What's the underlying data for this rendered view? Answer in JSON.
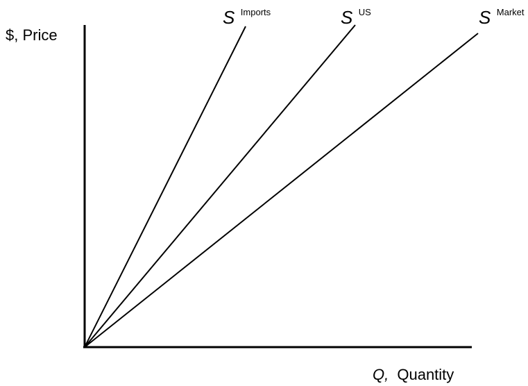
{
  "axes": {
    "y_label": "$, Price",
    "x_label_var": "Q,",
    "x_label_text": "Quantity"
  },
  "curves": [
    {
      "id": "imports",
      "symbol": "S",
      "superscript": "Imports"
    },
    {
      "id": "us",
      "symbol": "S",
      "superscript": "US"
    },
    {
      "id": "market",
      "symbol": "S",
      "superscript": "Market"
    }
  ],
  "colors": {
    "line": "#000000",
    "background": "#ffffff"
  }
}
